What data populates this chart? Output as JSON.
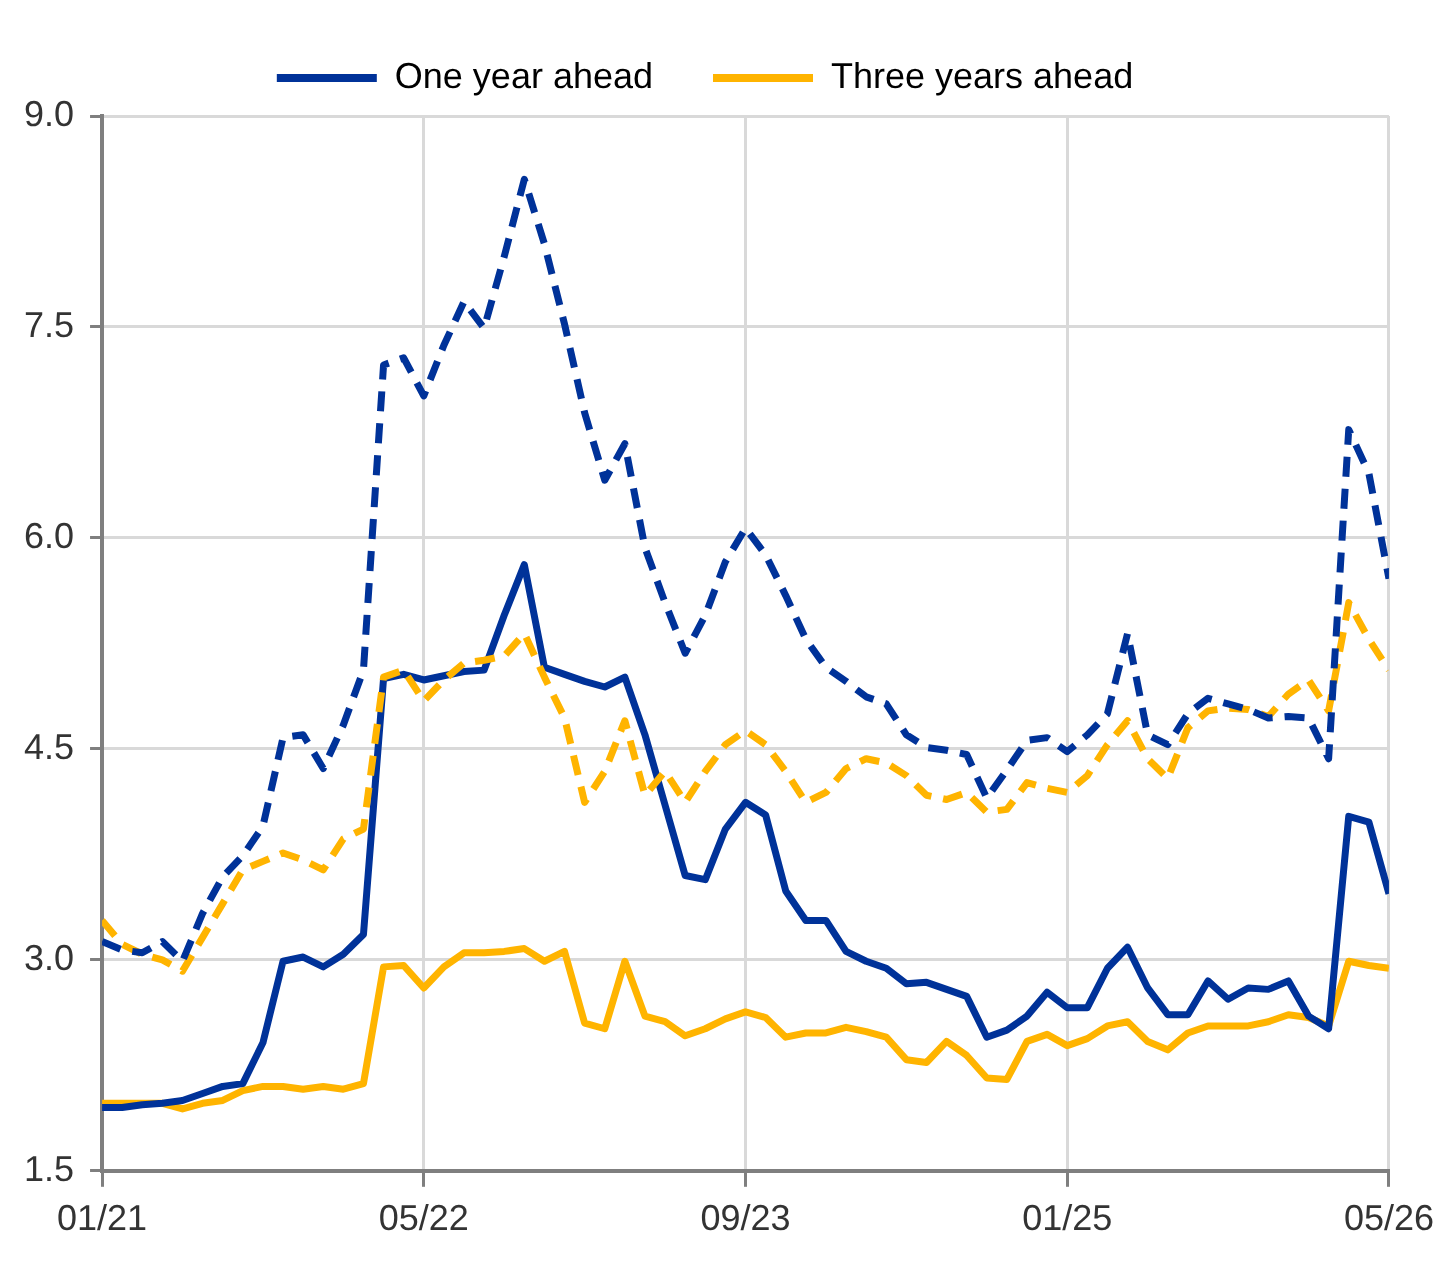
{
  "chart_data": {
    "type": "line",
    "legend": "top",
    "grid": true,
    "x": [
      "2021-01",
      "2021-02",
      "2021-03",
      "2021-04",
      "2021-05",
      "2021-06",
      "2021-07",
      "2021-08",
      "2021-09",
      "2021-10",
      "2021-11",
      "2021-12",
      "2022-01",
      "2022-02",
      "2022-03",
      "2022-04",
      "2022-05",
      "2022-06",
      "2022-07",
      "2022-08",
      "2022-09",
      "2022-10",
      "2022-11",
      "2022-12",
      "2023-01",
      "2023-02",
      "2023-03",
      "2023-04",
      "2023-05",
      "2023-06",
      "2023-07",
      "2023-08",
      "2023-09",
      "2023-10",
      "2023-11",
      "2023-12",
      "2024-01",
      "2024-02",
      "2024-03",
      "2024-04",
      "2024-05",
      "2024-06",
      "2024-07",
      "2024-08",
      "2024-09",
      "2024-10",
      "2024-11",
      "2024-12",
      "2025-01",
      "2025-02",
      "2025-03",
      "2025-04",
      "2025-05",
      "2025-06",
      "2025-07",
      "2025-08",
      "2025-09",
      "2025-10",
      "2025-11",
      "2025-12",
      "2026-01",
      "2026-02",
      "2026-03",
      "2026-04",
      "2026-05"
    ],
    "xlim": [
      "2021-01",
      "2026-05"
    ],
    "xticks": [
      {
        "value": "2021-01",
        "label": "01/21"
      },
      {
        "value": "2022-05",
        "label": "05/22"
      },
      {
        "value": "2023-09",
        "label": "09/23"
      },
      {
        "value": "2025-01",
        "label": "01/25"
      },
      {
        "value": "2026-05",
        "label": "05/26"
      }
    ],
    "ylim": [
      1.5,
      9.0
    ],
    "yticks": [
      {
        "value": 1.5,
        "label": "1.5"
      },
      {
        "value": 3.0,
        "label": "3.0"
      },
      {
        "value": 4.5,
        "label": "4.5"
      },
      {
        "value": 6.0,
        "label": "6.0"
      },
      {
        "value": 7.5,
        "label": "7.5"
      },
      {
        "value": 9.0,
        "label": "9.0"
      }
    ],
    "series": [
      {
        "color": "#003299",
        "line_style": "dashed",
        "values": [
          3.13,
          3.07,
          3.05,
          3.13,
          2.99,
          3.33,
          3.59,
          3.74,
          3.95,
          4.58,
          4.6,
          4.36,
          4.67,
          5.06,
          7.23,
          7.28,
          7.01,
          7.37,
          7.68,
          7.49,
          8.0,
          8.55,
          8.09,
          7.52,
          6.89,
          6.41,
          6.67,
          5.93,
          5.54,
          5.18,
          5.45,
          5.83,
          6.07,
          5.88,
          5.59,
          5.28,
          5.08,
          4.98,
          4.87,
          4.82,
          4.6,
          4.51,
          4.49,
          4.46,
          4.15,
          4.35,
          4.56,
          4.58,
          4.48,
          4.6,
          4.75,
          5.32,
          4.6,
          4.53,
          4.75,
          4.86,
          4.82,
          4.78,
          4.72,
          4.73,
          4.72,
          4.43,
          6.77,
          6.46,
          5.71
        ]
      },
      {
        "color": "#ffb400",
        "line_style": "dashed",
        "values": [
          3.28,
          3.11,
          3.04,
          3.0,
          2.92,
          3.16,
          3.4,
          3.64,
          3.7,
          3.76,
          3.71,
          3.64,
          3.86,
          3.93,
          5.01,
          5.06,
          4.84,
          4.99,
          5.11,
          5.13,
          5.16,
          5.32,
          5.01,
          4.72,
          4.12,
          4.34,
          4.7,
          4.17,
          4.34,
          4.12,
          4.34,
          4.53,
          4.63,
          4.53,
          4.34,
          4.12,
          4.19,
          4.36,
          4.43,
          4.4,
          4.31,
          4.17,
          4.14,
          4.19,
          4.05,
          4.07,
          4.26,
          4.22,
          4.19,
          4.31,
          4.53,
          4.7,
          4.43,
          4.29,
          4.65,
          4.77,
          4.79,
          4.78,
          4.73,
          4.89,
          4.99,
          4.77,
          5.54,
          5.28,
          5.06
        ]
      },
      {
        "name": "One year ahead",
        "color": "#003299",
        "line_style": "solid",
        "values": [
          1.95,
          1.95,
          1.97,
          1.98,
          2.0,
          2.05,
          2.1,
          2.12,
          2.41,
          2.99,
          3.02,
          2.95,
          3.04,
          3.18,
          5.0,
          5.03,
          4.99,
          5.02,
          5.05,
          5.06,
          5.45,
          5.81,
          5.08,
          5.03,
          4.98,
          4.94,
          5.01,
          4.6,
          4.1,
          3.6,
          3.57,
          3.93,
          4.12,
          4.03,
          3.49,
          3.28,
          3.28,
          3.06,
          2.99,
          2.94,
          2.83,
          2.84,
          2.79,
          2.74,
          2.45,
          2.5,
          2.6,
          2.77,
          2.66,
          2.66,
          2.94,
          3.09,
          2.8,
          2.61,
          2.61,
          2.85,
          2.72,
          2.8,
          2.79,
          2.85,
          2.6,
          2.51,
          4.02,
          3.98,
          3.47
        ]
      },
      {
        "name": "Three years ahead",
        "color": "#ffb400",
        "line_style": "solid",
        "values": [
          1.98,
          1.98,
          1.98,
          1.98,
          1.94,
          1.98,
          2.0,
          2.07,
          2.1,
          2.1,
          2.08,
          2.1,
          2.08,
          2.12,
          2.95,
          2.96,
          2.8,
          2.95,
          3.05,
          3.05,
          3.06,
          3.08,
          2.99,
          3.06,
          2.55,
          2.51,
          2.99,
          2.6,
          2.56,
          2.46,
          2.51,
          2.58,
          2.63,
          2.59,
          2.45,
          2.48,
          2.48,
          2.52,
          2.49,
          2.45,
          2.29,
          2.27,
          2.42,
          2.32,
          2.16,
          2.15,
          2.42,
          2.47,
          2.39,
          2.44,
          2.53,
          2.56,
          2.42,
          2.36,
          2.48,
          2.53,
          2.53,
          2.53,
          2.56,
          2.61,
          2.59,
          2.53,
          2.99,
          2.96,
          2.94
        ]
      }
    ]
  }
}
